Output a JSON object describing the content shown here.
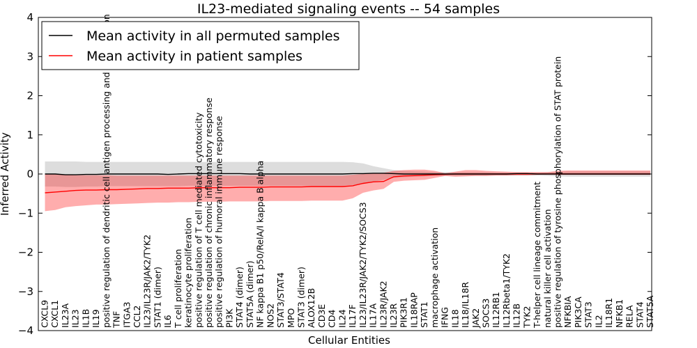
{
  "chart_data": {
    "type": "line",
    "title": "IL23-mediated signaling events -- 54 samples",
    "xlabel": "Cellular Entities",
    "ylabel": "Inferred Activity",
    "ylim": [
      -4,
      4
    ],
    "yticks": [
      -4,
      -3,
      -2,
      -1,
      0,
      1,
      2,
      3,
      4
    ],
    "legend_position": "top-left",
    "colors": {
      "permuted": "#000000",
      "patient": "#ff0000",
      "permuted_band": "#b4b4b4",
      "patient_band": "#ff0000"
    },
    "categories": [
      "CXCL9",
      "CXCL1",
      "IL23A",
      "IL23",
      "IL1B",
      "IL19",
      "positive regulation of dendritic cell antigen processing and presentation",
      "TNF",
      "ITGA3",
      "CCL2",
      "IL23/IL23R/JAK2/TYK2",
      "STAT1 (dimer)",
      "IL6",
      "T cell proliferation",
      "keratinocyte proliferation",
      "positive regulation of T cell mediated cytotoxicity",
      "positive regulation of chronic inflammatory response",
      "positive regulation of humoral immune response",
      "PI3K",
      "STAT4 (dimer)",
      "STAT5A (dimer)",
      "NF kappa B1 p50/RelA/I kappa B alpha",
      "NOS2",
      "STAT3/STAT4",
      "MPO",
      "STAT3 (dimer)",
      "ALOX12B",
      "CD3E",
      "CD4",
      "IL24",
      "IL17F",
      "IL23/IL23R/JAK2/TYK2/SOCS3",
      "IL17A",
      "IL23R/JAK2",
      "IL23R",
      "PIK3R1",
      "IL18RAP",
      "STAT1",
      "macrophage activation",
      "IFNG",
      "IL18",
      "IL18/IL18R",
      "JAK2",
      "SOCS3",
      "IL12RB1",
      "IL12Rbeta1/TYK2",
      "IL12B",
      "TYK2",
      "T-helper cell lineage commitment",
      "natural killer cell activation",
      "positive regulation of tyrosine phosphorylation of STAT protein",
      "NFKBIA",
      "PIK3CA",
      "STAT3",
      "IL2",
      "IL18R1",
      "NFKB1",
      "RELA",
      "STAT4",
      "STAT5A"
    ],
    "series": [
      {
        "name": "Mean activity in all permuted samples",
        "values": [
          0.0,
          0.0,
          -0.02,
          -0.02,
          -0.01,
          -0.01,
          0.0,
          0.0,
          0.0,
          0.0,
          0.0,
          0.0,
          -0.01,
          0.0,
          0.01,
          0.01,
          0.01,
          0.01,
          0.01,
          0.01,
          0.0,
          0.0,
          0.0,
          0.0,
          0.0,
          0.0,
          0.0,
          0.0,
          0.0,
          0.0,
          0.01,
          0.01,
          0.02,
          0.02,
          0.01,
          0.0,
          0.0,
          0.0,
          0.0,
          0.0,
          0.0,
          0.0,
          0.0,
          0.0,
          0.0,
          0.0,
          0.01,
          0.01,
          0.0,
          0.0,
          0.0,
          0.0,
          0.0,
          0.0,
          0.0,
          0.0,
          0.0,
          0.0,
          0.0,
          0.0
        ],
        "lower": [
          -0.32,
          -0.32,
          -0.33,
          -0.33,
          -0.32,
          -0.32,
          -0.31,
          -0.31,
          -0.31,
          -0.31,
          -0.31,
          -0.31,
          -0.31,
          -0.31,
          -0.3,
          -0.3,
          -0.3,
          -0.3,
          -0.3,
          -0.3,
          -0.3,
          -0.3,
          -0.3,
          -0.3,
          -0.3,
          -0.3,
          -0.3,
          -0.3,
          -0.3,
          -0.3,
          -0.28,
          -0.25,
          -0.2,
          -0.15,
          -0.1,
          -0.08,
          -0.07,
          -0.06,
          -0.05,
          -0.05,
          -0.05,
          -0.05,
          -0.05,
          -0.05,
          -0.04,
          -0.04,
          -0.04,
          -0.04,
          -0.04,
          -0.05,
          -0.06,
          -0.07,
          -0.07,
          -0.07,
          -0.07,
          -0.07,
          -0.07,
          -0.07,
          -0.07,
          -0.07
        ],
        "upper": [
          0.32,
          0.32,
          0.32,
          0.32,
          0.31,
          0.31,
          0.31,
          0.31,
          0.31,
          0.31,
          0.31,
          0.31,
          0.31,
          0.31,
          0.31,
          0.31,
          0.31,
          0.31,
          0.31,
          0.31,
          0.31,
          0.31,
          0.31,
          0.31,
          0.31,
          0.31,
          0.31,
          0.31,
          0.31,
          0.31,
          0.3,
          0.27,
          0.2,
          0.15,
          0.1,
          0.08,
          0.07,
          0.06,
          0.05,
          0.05,
          0.05,
          0.05,
          0.05,
          0.05,
          0.04,
          0.04,
          0.04,
          0.04,
          0.04,
          0.05,
          0.06,
          0.07,
          0.07,
          0.07,
          0.07,
          0.07,
          0.07,
          0.07,
          0.07,
          0.07
        ]
      },
      {
        "name": "Mean activity in patient samples",
        "values": [
          -0.48,
          -0.46,
          -0.44,
          -0.42,
          -0.41,
          -0.41,
          -0.4,
          -0.4,
          -0.39,
          -0.38,
          -0.37,
          -0.37,
          -0.36,
          -0.36,
          -0.36,
          -0.35,
          -0.35,
          -0.35,
          -0.35,
          -0.34,
          -0.34,
          -0.34,
          -0.33,
          -0.33,
          -0.33,
          -0.33,
          -0.32,
          -0.32,
          -0.32,
          -0.32,
          -0.3,
          -0.24,
          -0.2,
          -0.19,
          -0.07,
          -0.05,
          -0.04,
          -0.03,
          -0.02,
          -0.01,
          0.0,
          0.0,
          0.0,
          0.0,
          0.0,
          0.0,
          0.0,
          0.0,
          0.0,
          0.0,
          0.0,
          0.0,
          0.0,
          0.0,
          0.0,
          0.0,
          0.0,
          0.0,
          0.0,
          0.0
        ],
        "lower": [
          -0.95,
          -0.92,
          -0.85,
          -0.82,
          -0.8,
          -0.78,
          -0.78,
          -0.77,
          -0.76,
          -0.75,
          -0.74,
          -0.73,
          -0.73,
          -0.72,
          -0.72,
          -0.71,
          -0.71,
          -0.71,
          -0.7,
          -0.7,
          -0.7,
          -0.7,
          -0.69,
          -0.69,
          -0.69,
          -0.69,
          -0.68,
          -0.68,
          -0.68,
          -0.68,
          -0.62,
          -0.48,
          -0.42,
          -0.38,
          -0.2,
          -0.17,
          -0.16,
          -0.15,
          -0.1,
          -0.05,
          -0.07,
          -0.06,
          -0.05,
          -0.05,
          -0.04,
          -0.04,
          -0.03,
          -0.03,
          -0.02,
          -0.01,
          -0.02,
          -0.02,
          -0.02,
          -0.02,
          -0.02,
          -0.02,
          -0.02,
          -0.02,
          -0.02,
          -0.02
        ],
        "upper": [
          0.0,
          0.0,
          -0.02,
          -0.03,
          -0.03,
          -0.03,
          -0.03,
          -0.04,
          -0.04,
          -0.04,
          -0.04,
          -0.04,
          -0.04,
          -0.04,
          -0.04,
          -0.04,
          -0.04,
          -0.04,
          -0.04,
          -0.04,
          -0.04,
          -0.04,
          -0.04,
          -0.04,
          -0.04,
          -0.04,
          -0.04,
          -0.04,
          -0.04,
          -0.04,
          -0.02,
          0.0,
          0.02,
          0.03,
          0.08,
          0.1,
          0.11,
          0.11,
          0.08,
          0.02,
          0.06,
          0.1,
          0.1,
          0.08,
          0.07,
          0.06,
          0.05,
          0.05,
          0.05,
          0.05,
          0.08,
          0.09,
          0.09,
          0.09,
          0.09,
          0.09,
          0.09,
          0.09,
          0.09,
          0.09
        ]
      }
    ]
  }
}
